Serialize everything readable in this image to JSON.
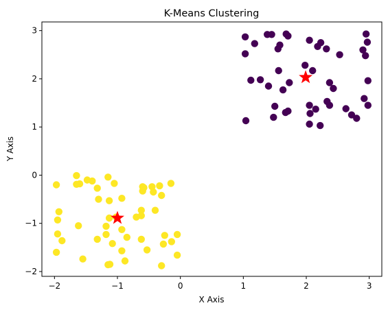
{
  "chart_data": {
    "type": "scatter",
    "title": "K-Means Clustering",
    "xlabel": "X Axis",
    "ylabel": "Y Axis",
    "xlim": [
      -2.2,
      3.2
    ],
    "ylim": [
      -2.1,
      3.18
    ],
    "xticks": [
      -2,
      -1,
      0,
      1,
      2,
      3
    ],
    "yticks": [
      -2,
      -1,
      0,
      1,
      2,
      3
    ],
    "grid": false,
    "series": [
      {
        "color": "#440154",
        "points": [
          [
            1.03,
            2.87
          ],
          [
            1.03,
            2.52
          ],
          [
            1.18,
            2.73
          ],
          [
            1.38,
            2.92
          ],
          [
            1.45,
            2.92
          ],
          [
            1.55,
            2.62
          ],
          [
            1.58,
            2.7
          ],
          [
            1.68,
            2.93
          ],
          [
            1.71,
            2.89
          ],
          [
            2.05,
            2.8
          ],
          [
            2.18,
            2.67
          ],
          [
            2.23,
            2.75
          ],
          [
            2.32,
            2.62
          ],
          [
            2.53,
            2.5
          ],
          [
            2.9,
            2.6
          ],
          [
            2.94,
            2.48
          ],
          [
            2.95,
            2.93
          ],
          [
            2.97,
            2.76
          ],
          [
            1.12,
            1.97
          ],
          [
            1.27,
            1.98
          ],
          [
            1.4,
            1.85
          ],
          [
            1.56,
            2.17
          ],
          [
            1.63,
            1.77
          ],
          [
            1.73,
            1.92
          ],
          [
            1.98,
            2.28
          ],
          [
            2.1,
            2.17
          ],
          [
            2.05,
            1.45
          ],
          [
            2.33,
            1.53
          ],
          [
            2.37,
            1.92
          ],
          [
            2.43,
            1.8
          ],
          [
            2.37,
            1.45
          ],
          [
            2.15,
            1.37
          ],
          [
            1.5,
            1.43
          ],
          [
            1.48,
            1.2
          ],
          [
            1.67,
            1.3
          ],
          [
            1.71,
            1.33
          ],
          [
            2.06,
            1.28
          ],
          [
            2.05,
            1.06
          ],
          [
            2.22,
            1.03
          ],
          [
            1.04,
            1.13
          ],
          [
            2.63,
            1.38
          ],
          [
            2.72,
            1.25
          ],
          [
            2.8,
            1.18
          ],
          [
            2.92,
            1.59
          ],
          [
            2.98,
            1.45
          ],
          [
            2.98,
            1.96
          ]
        ]
      },
      {
        "color": "#fde725",
        "points": [
          [
            -1.97,
            -0.2
          ],
          [
            -1.65,
            -0.01
          ],
          [
            -1.65,
            -0.19
          ],
          [
            -1.6,
            -0.18
          ],
          [
            -1.48,
            -0.1
          ],
          [
            -1.4,
            -0.12
          ],
          [
            -1.32,
            -0.27
          ],
          [
            -1.15,
            -0.04
          ],
          [
            -1.05,
            -0.17
          ],
          [
            -0.6,
            -0.24
          ],
          [
            -0.58,
            -0.26
          ],
          [
            -0.45,
            -0.24
          ],
          [
            -0.33,
            -0.22
          ],
          [
            -0.15,
            -0.17
          ],
          [
            -0.6,
            -0.33
          ],
          [
            -0.43,
            -0.35
          ],
          [
            -0.3,
            -0.42
          ],
          [
            -1.3,
            -0.5
          ],
          [
            -1.13,
            -0.53
          ],
          [
            -0.93,
            -0.48
          ],
          [
            -1.93,
            -0.76
          ],
          [
            -0.62,
            -0.73
          ],
          [
            -0.4,
            -0.73
          ],
          [
            -0.62,
            -0.84
          ],
          [
            -0.7,
            -0.87
          ],
          [
            -1.02,
            -0.87
          ],
          [
            -1.13,
            -0.89
          ],
          [
            -1.95,
            -0.93
          ],
          [
            -1.62,
            -1.05
          ],
          [
            -1.18,
            -1.06
          ],
          [
            -0.93,
            -1.13
          ],
          [
            -1.95,
            -1.22
          ],
          [
            -1.18,
            -1.23
          ],
          [
            -0.25,
            -1.25
          ],
          [
            -0.05,
            -1.23
          ],
          [
            -0.85,
            -1.29
          ],
          [
            -1.32,
            -1.33
          ],
          [
            -1.88,
            -1.36
          ],
          [
            -0.62,
            -1.33
          ],
          [
            -0.14,
            -1.38
          ],
          [
            -1.08,
            -1.42
          ],
          [
            -0.27,
            -1.43
          ],
          [
            -0.53,
            -1.55
          ],
          [
            -0.93,
            -1.57
          ],
          [
            -1.97,
            -1.6
          ],
          [
            -0.05,
            -1.66
          ],
          [
            -1.55,
            -1.74
          ],
          [
            -0.88,
            -1.78
          ],
          [
            -1.12,
            -1.85
          ],
          [
            -1.15,
            -1.86
          ],
          [
            -0.3,
            -1.88
          ]
        ]
      }
    ],
    "centroids": {
      "color": "#ff0000",
      "marker": "star",
      "points": [
        [
          1.99,
          2.03
        ],
        [
          -1.0,
          -0.89
        ]
      ]
    }
  }
}
